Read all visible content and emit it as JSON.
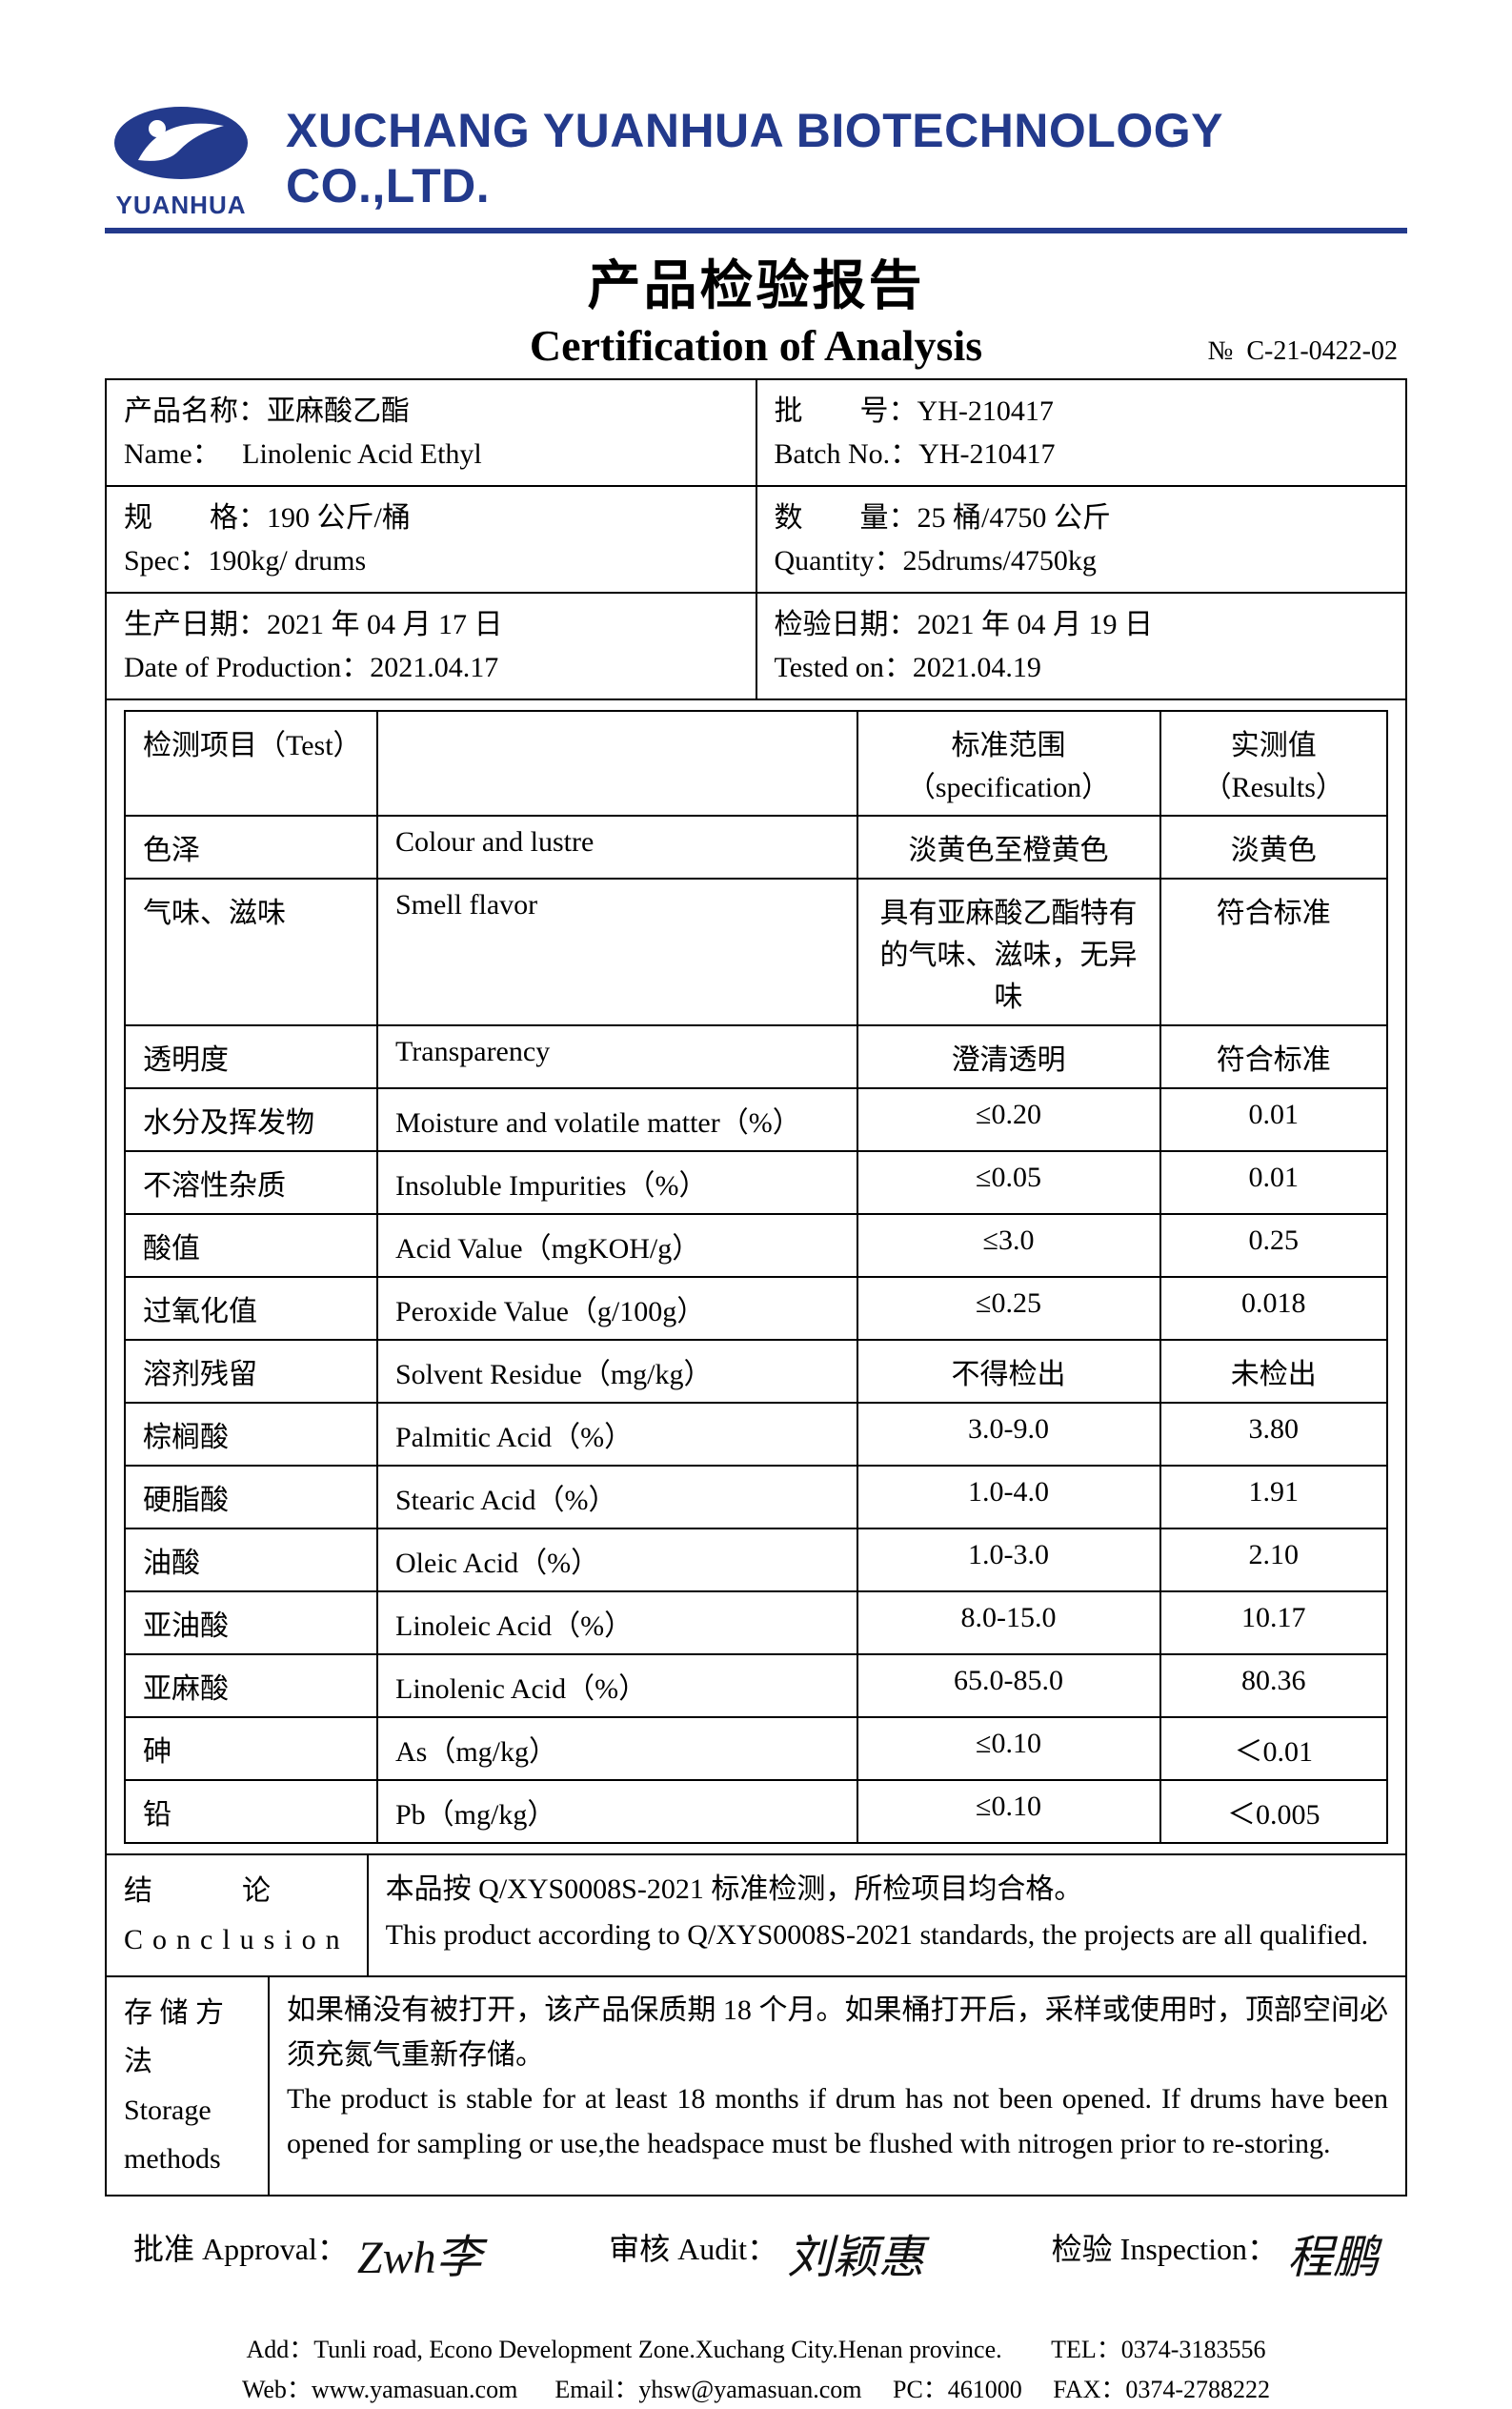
{
  "company": {
    "logo_text": "YUANHUA",
    "name_en": "XUCHANG YUANHUA BIOTECHNOLOGY CO.,LTD.",
    "logo_color": "#233a8c"
  },
  "titles": {
    "cn": "产品检验报告",
    "en": "Certification of Analysis",
    "cert_no_label": "№",
    "cert_no": "C-21-0422-02"
  },
  "header_info": {
    "name_cn_label": "产品名称：",
    "name_cn": "亚麻酸乙酯",
    "name_en_label": "Name：",
    "name_en": "Linolenic Acid Ethyl",
    "batch_cn_label": "批　　号：",
    "batch_cn": "YH-210417",
    "batch_en_label": "Batch No.：",
    "batch_en": "YH-210417",
    "spec_cn_label": "规　　格：",
    "spec_cn": "190 公斤/桶",
    "spec_en_label": "Spec：",
    "spec_en": "190kg/ drums",
    "qty_cn_label": "数　　量：",
    "qty_cn": "25 桶/4750 公斤",
    "qty_en_label": "Quantity：",
    "qty_en": "25drums/4750kg",
    "prod_cn_label": "生产日期：",
    "prod_cn": "2021 年 04 月 17 日",
    "prod_en_label": "Date of Production：",
    "prod_en": "2021.04.17",
    "test_cn_label": "检验日期：",
    "test_cn": "2021 年 04 月 19 日",
    "test_en_label": "Tested on：",
    "test_en": "2021.04.19"
  },
  "test_headers": {
    "item_cn": "检测项目（Test）",
    "spec": "标准范围（specification）",
    "result": "实测值（Results）"
  },
  "tests": [
    {
      "cn": "色泽",
      "en": "Colour and lustre",
      "spec": "淡黄色至橙黄色",
      "result": "淡黄色"
    },
    {
      "cn": "气味、滋味",
      "en": "Smell flavor",
      "spec": "具有亚麻酸乙酯特有的气味、滋味，无异味",
      "result": "符合标准"
    },
    {
      "cn": "透明度",
      "en": "Transparency",
      "spec": "澄清透明",
      "result": "符合标准"
    },
    {
      "cn": "水分及挥发物",
      "en": "Moisture and volatile matter（%）",
      "spec": "≤0.20",
      "result": "0.01"
    },
    {
      "cn": "不溶性杂质",
      "en": "Insoluble Impurities（%）",
      "spec": "≤0.05",
      "result": "0.01"
    },
    {
      "cn": "酸值",
      "en": "Acid Value（mgKOH/g）",
      "spec": "≤3.0",
      "result": "0.25"
    },
    {
      "cn": "过氧化值",
      "en": "Peroxide Value（g/100g）",
      "spec": "≤0.25",
      "result": "0.018"
    },
    {
      "cn": "溶剂残留",
      "en": "Solvent Residue（mg/kg）",
      "spec": "不得检出",
      "result": "未检出"
    },
    {
      "cn": "棕榈酸",
      "en": "Palmitic Acid（%）",
      "spec": "3.0-9.0",
      "result": "3.80"
    },
    {
      "cn": "硬脂酸",
      "en": "Stearic Acid（%）",
      "spec": "1.0-4.0",
      "result": "1.91"
    },
    {
      "cn": "油酸",
      "en": "Oleic Acid（%）",
      "spec": "1.0-3.0",
      "result": "2.10"
    },
    {
      "cn": "亚油酸",
      "en": "Linoleic Acid（%）",
      "spec": "8.0-15.0",
      "result": "10.17"
    },
    {
      "cn": "亚麻酸",
      "en": "Linolenic Acid（%）",
      "spec": "65.0-85.0",
      "result": "80.36"
    },
    {
      "cn": "砷",
      "en": "As（mg/kg）",
      "spec": "≤0.10",
      "result": "＜0.01"
    },
    {
      "cn": "铅",
      "en": "Pb（mg/kg）",
      "spec": "≤0.10",
      "result": "＜0.005"
    }
  ],
  "conclusion": {
    "label_cn": "结　论",
    "label_en": "Conclusion",
    "text_cn": "本品按 Q/XYS0008S-2021 标准检测，所检项目均合格。",
    "text_en": "This product according to Q/XYS0008S-2021 standards, the projects are all qualified."
  },
  "storage": {
    "label_cn": "存 储 方 法",
    "label_en1": "Storage",
    "label_en2": "methods",
    "text_cn": "如果桶没有被打开，该产品保质期 18 个月。如果桶打开后，采样或使用时，顶部空间必须充氮气重新存储。",
    "text_en": "The product is stable for at least 18 months if drum has not been opened. If drums have been opened for sampling or use,the headspace must be flushed with nitrogen prior to re-storing."
  },
  "signatures": {
    "approval_label": "批准 Approval：",
    "approval_sig": "Zwh李",
    "audit_label": "审核 Audit：",
    "audit_sig": "刘颖惠",
    "inspection_label": "检验 Inspection：",
    "inspection_sig": "程鹏"
  },
  "footer": {
    "line1a": "Add：Tunli road, Econo Development Zone.Xuchang City.Henan province.",
    "line1b": "TEL：0374-3183556",
    "line2a": "Web：www.yamasuan.com",
    "line2b": "Email：yhsw@yamasuan.com",
    "line2c": "PC：461000",
    "line2d": "FAX：0374-2788222"
  }
}
